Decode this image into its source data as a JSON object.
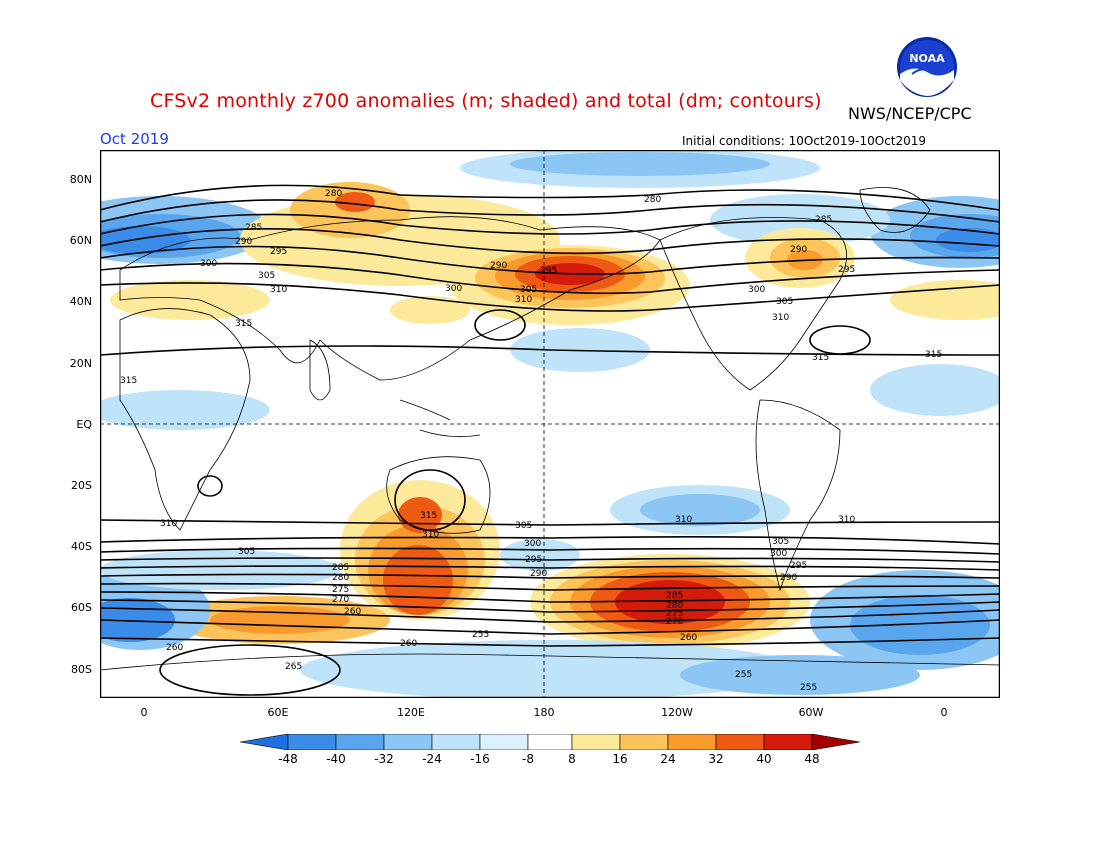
{
  "header": {
    "title": "CFSv2 monthly z700 anomalies (m; shaded) and total (dm; contours)",
    "agency": "NWS/NCEP/CPC",
    "month": "Oct 2019",
    "initial_conditions": "Initial conditions: 10Oct2019-10Oct2019",
    "logo_text": "NOAA"
  },
  "map": {
    "lat_labels": [
      "80N",
      "60N",
      "40N",
      "20N",
      "EQ",
      "20S",
      "40S",
      "60S",
      "80S"
    ],
    "lon_labels": [
      "0",
      "60E",
      "120E",
      "180",
      "120W",
      "60W",
      "0"
    ],
    "contour_labels": [
      "280",
      "285",
      "290",
      "295",
      "300",
      "305",
      "310",
      "315",
      "260",
      "265",
      "270",
      "275",
      "255"
    ],
    "anomaly_scale": {
      "labels": [
        "-48",
        "-40",
        "-32",
        "-24",
        "-16",
        "-8",
        "8",
        "16",
        "24",
        "32",
        "40",
        "48"
      ],
      "colors": [
        "#1e6fe0",
        "#3b8ce8",
        "#5aa6ee",
        "#8cc6f4",
        "#bfe3f8",
        "#ffffff",
        "#fde99a",
        "#fcc45a",
        "#f99a2c",
        "#ee5a14",
        "#d51b0b",
        "#a40000"
      ]
    }
  }
}
